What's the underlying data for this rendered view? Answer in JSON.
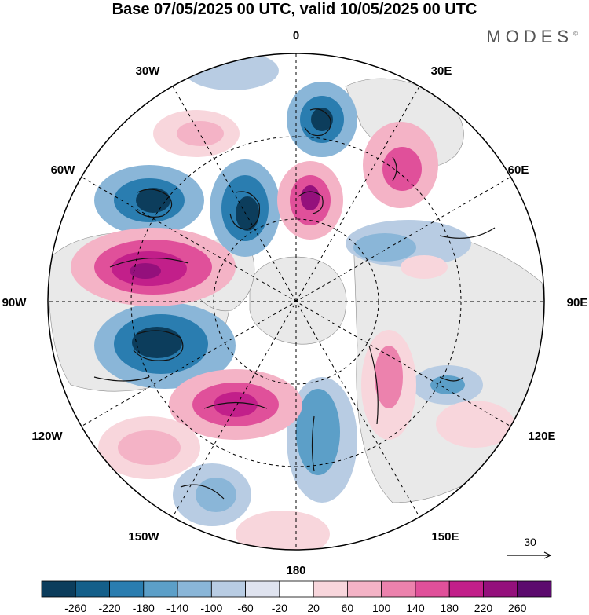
{
  "title": "Base 07/05/2025 00 UTC, valid 10/05/2025 00 UTC",
  "brand": "MODES",
  "brand_mark": "©",
  "meridian_labels": {
    "top": "0",
    "top_right": "30E",
    "right_upper": "60E",
    "right": "90E",
    "right_lower": "120E",
    "bottom_right": "150E",
    "bottom": "180",
    "bottom_left": "150W",
    "left_lower": "120W",
    "left": "90W",
    "left_upper": "60W",
    "top_left": "30W"
  },
  "reference_vector": {
    "value": "30"
  },
  "colorbar": {
    "ticks": [
      "-260",
      "-220",
      "-180",
      "-140",
      "-100",
      "-60",
      "-20",
      "20",
      "60",
      "100",
      "140",
      "180",
      "220",
      "260"
    ],
    "colors": [
      "#0c3d5c",
      "#145f8a",
      "#2a7db0",
      "#5c9fc8",
      "#8ab6d8",
      "#b8cce3",
      "#dfe3ef",
      "#ffffff",
      "#f8d6dc",
      "#f4b3c6",
      "#ec82ad",
      "#e0509a",
      "#c21f8a",
      "#94107c",
      "#5c0a6e"
    ]
  },
  "colors": {
    "land": "#ececec",
    "ocean": "#ffffff",
    "grid": "#000000"
  }
}
